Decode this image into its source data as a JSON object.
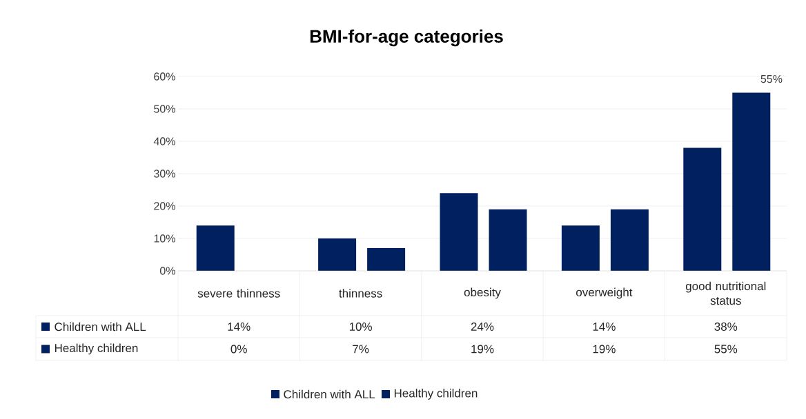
{
  "chart_data": {
    "type": "bar",
    "title": "BMI-for-age categories",
    "categories": [
      "severe thinness",
      "thinness",
      "obesity",
      "overweight",
      "good nutritional status"
    ],
    "series": [
      {
        "name": "Children with ALL",
        "color": "#002060",
        "values": [
          14,
          10,
          24,
          14,
          38
        ],
        "value_labels": [
          "14%",
          "10%",
          "24%",
          "14%",
          "38%"
        ]
      },
      {
        "name": "Healthy children",
        "color": "#002060",
        "values": [
          0,
          7,
          19,
          19,
          55
        ],
        "value_labels": [
          "0%",
          "7%",
          "19%",
          "19%",
          "55%"
        ]
      }
    ],
    "ylim": [
      0,
      60
    ],
    "yticks": [
      {
        "value": 0,
        "label": "0%"
      },
      {
        "value": 10,
        "label": "10%"
      },
      {
        "value": 20,
        "label": "20%"
      },
      {
        "value": 30,
        "label": "30%"
      },
      {
        "value": 40,
        "label": "40%"
      },
      {
        "value": 50,
        "label": "50%"
      },
      {
        "value": 60,
        "label": "60%"
      }
    ],
    "grid": "y",
    "legend": "bottom",
    "annotations": [
      "55%"
    ]
  }
}
